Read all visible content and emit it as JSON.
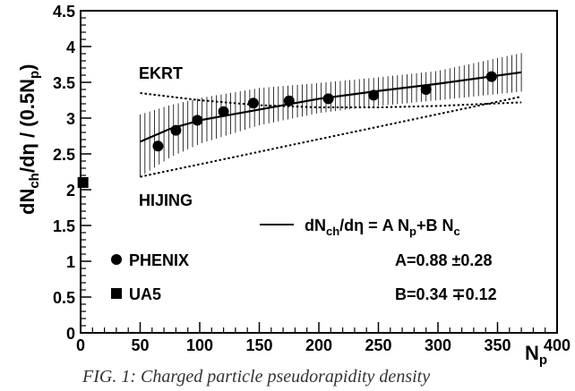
{
  "chart_data": {
    "type": "scatter",
    "xlabel": "N",
    "xlabel_sub": "p",
    "ylabel_parts": [
      "dN",
      "ch",
      "/dη / (0.5N",
      "p",
      ")"
    ],
    "xlim": [
      0,
      400
    ],
    "ylim": [
      0,
      4.5
    ],
    "xticks": [
      "0",
      "50",
      "100",
      "150",
      "200",
      "250",
      "300",
      "350",
      "400"
    ],
    "yticks": [
      "0",
      "0.5",
      "1",
      "1.5",
      "2",
      "2.5",
      "3",
      "3.5",
      "4",
      "4.5"
    ],
    "series": [
      {
        "name": "PHENIX",
        "marker": "circle",
        "x": [
          65,
          80,
          98,
          120,
          145,
          175,
          208,
          246,
          290,
          345
        ],
        "y": [
          2.61,
          2.83,
          2.97,
          3.09,
          3.21,
          3.24,
          3.27,
          3.32,
          3.4,
          3.58
        ]
      },
      {
        "name": "UA5",
        "marker": "square",
        "x": [
          2
        ],
        "y": [
          2.1
        ]
      }
    ],
    "curves": [
      {
        "label": "EKRT",
        "style": "dotted",
        "x": [
          50,
          100,
          150,
          200,
          250,
          300,
          370
        ],
        "y": [
          3.35,
          3.25,
          3.18,
          3.15,
          3.15,
          3.17,
          3.22
        ]
      },
      {
        "label": "HIJING",
        "style": "dotted",
        "x": [
          50,
          370
        ],
        "y": [
          2.18,
          3.3
        ]
      },
      {
        "label": "fit",
        "style": "solid",
        "x": [
          50,
          75,
          100,
          150,
          200,
          250,
          300,
          370
        ],
        "y": [
          2.67,
          2.85,
          2.97,
          3.12,
          3.27,
          3.38,
          3.48,
          3.64
        ]
      }
    ],
    "band": {
      "x": [
        50,
        75,
        100,
        150,
        200,
        250,
        300,
        370
      ],
      "low": [
        2.18,
        2.45,
        2.64,
        2.9,
        3.07,
        3.17,
        3.25,
        3.37
      ],
      "high": [
        3.05,
        3.18,
        3.28,
        3.42,
        3.49,
        3.57,
        3.66,
        3.91
      ]
    },
    "annotations": {
      "ekrt": "EKRT",
      "hijing": "HIJING",
      "formula": "dN",
      "formula_sub1": "ch",
      "formula_mid": "/dη  = A N",
      "formula_sub2": "p",
      "formula_mid2": "+B N",
      "formula_sub3": "c",
      "phenix": "PHENIX",
      "ua5": "UA5",
      "a_value": "A=0.88 ±0.28",
      "b_value": "B=0.34 ∓0.12"
    },
    "caption": "FIG. 1: Charged particle pseudorapidity density"
  }
}
